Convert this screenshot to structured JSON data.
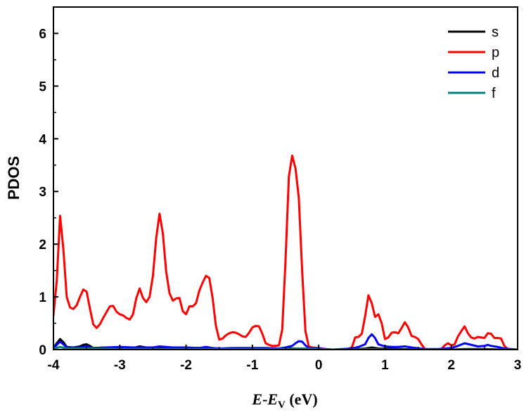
{
  "chart_data": {
    "type": "line",
    "title": "",
    "xlabel": {
      "italic_part": "E",
      "sep": "-",
      "italic_part2": "E",
      "subscript": "V",
      "unit": " (eV)"
    },
    "ylabel": "PDOS",
    "xlim": [
      -4,
      3
    ],
    "ylim": [
      0,
      6.5
    ],
    "xticks": [
      -4,
      -3,
      -2,
      -1,
      0,
      1,
      2,
      3
    ],
    "xtick_labels": [
      "-4",
      "-3",
      "-2",
      "-1",
      "0",
      "1",
      "2",
      "3"
    ],
    "yticks": [
      0,
      1,
      2,
      3,
      4,
      5,
      6
    ],
    "ytick_labels": [
      "0",
      "1",
      "2",
      "3",
      "4",
      "5",
      "6"
    ],
    "grid": false,
    "legend_position": "top-right",
    "series": [
      {
        "name": "s",
        "color": "#000000",
        "points": [
          [
            -4.0,
            0.03
          ],
          [
            -3.95,
            0.12
          ],
          [
            -3.9,
            0.2
          ],
          [
            -3.85,
            0.14
          ],
          [
            -3.8,
            0.05
          ],
          [
            -3.7,
            0.04
          ],
          [
            -3.6,
            0.06
          ],
          [
            -3.55,
            0.09
          ],
          [
            -3.5,
            0.1
          ],
          [
            -3.45,
            0.07
          ],
          [
            -3.4,
            0.03
          ],
          [
            -3.2,
            0.04
          ],
          [
            -3.0,
            0.04
          ],
          [
            -2.8,
            0.03
          ],
          [
            -2.7,
            0.06
          ],
          [
            -2.6,
            0.04
          ],
          [
            -2.5,
            0.03
          ],
          [
            -2.4,
            0.05
          ],
          [
            -2.3,
            0.03
          ],
          [
            -2.0,
            0.03
          ],
          [
            -1.7,
            0.03
          ],
          [
            -1.5,
            0.02
          ],
          [
            -1.0,
            0.02
          ],
          [
            -0.5,
            0.02
          ],
          [
            -0.3,
            0.02
          ],
          [
            0.0,
            0.01
          ],
          [
            0.2,
            0.0
          ],
          [
            0.5,
            0.0
          ],
          [
            0.7,
            0.02
          ],
          [
            0.8,
            0.04
          ],
          [
            0.9,
            0.02
          ],
          [
            1.2,
            0.01
          ],
          [
            1.6,
            0.0
          ],
          [
            2.0,
            0.0
          ],
          [
            2.2,
            0.01
          ],
          [
            2.5,
            0.01
          ],
          [
            2.8,
            0.0
          ],
          [
            3.0,
            0.0
          ]
        ]
      },
      {
        "name": "p",
        "color": "#ff0000",
        "points": [
          [
            -4.0,
            0.65
          ],
          [
            -3.95,
            1.3
          ],
          [
            -3.9,
            2.54
          ],
          [
            -3.85,
            1.9
          ],
          [
            -3.8,
            1.0
          ],
          [
            -3.75,
            0.8
          ],
          [
            -3.7,
            0.77
          ],
          [
            -3.65,
            0.84
          ],
          [
            -3.6,
            1.0
          ],
          [
            -3.55,
            1.14
          ],
          [
            -3.5,
            1.1
          ],
          [
            -3.45,
            0.78
          ],
          [
            -3.4,
            0.48
          ],
          [
            -3.35,
            0.41
          ],
          [
            -3.3,
            0.48
          ],
          [
            -3.25,
            0.6
          ],
          [
            -3.2,
            0.71
          ],
          [
            -3.15,
            0.82
          ],
          [
            -3.1,
            0.83
          ],
          [
            -3.05,
            0.72
          ],
          [
            -3.0,
            0.67
          ],
          [
            -2.95,
            0.65
          ],
          [
            -2.9,
            0.6
          ],
          [
            -2.85,
            0.57
          ],
          [
            -2.8,
            0.67
          ],
          [
            -2.75,
            0.98
          ],
          [
            -2.7,
            1.16
          ],
          [
            -2.65,
            0.98
          ],
          [
            -2.6,
            0.9
          ],
          [
            -2.55,
            1.0
          ],
          [
            -2.5,
            1.4
          ],
          [
            -2.45,
            2.12
          ],
          [
            -2.4,
            2.58
          ],
          [
            -2.35,
            2.2
          ],
          [
            -2.3,
            1.48
          ],
          [
            -2.25,
            1.07
          ],
          [
            -2.2,
            0.93
          ],
          [
            -2.15,
            0.97
          ],
          [
            -2.1,
            0.98
          ],
          [
            -2.05,
            0.73
          ],
          [
            -2.0,
            0.67
          ],
          [
            -1.95,
            0.82
          ],
          [
            -1.9,
            0.82
          ],
          [
            -1.85,
            0.88
          ],
          [
            -1.8,
            1.12
          ],
          [
            -1.75,
            1.27
          ],
          [
            -1.7,
            1.4
          ],
          [
            -1.65,
            1.36
          ],
          [
            -1.6,
            0.98
          ],
          [
            -1.55,
            0.45
          ],
          [
            -1.5,
            0.19
          ],
          [
            -1.45,
            0.21
          ],
          [
            -1.4,
            0.27
          ],
          [
            -1.35,
            0.31
          ],
          [
            -1.3,
            0.33
          ],
          [
            -1.25,
            0.32
          ],
          [
            -1.2,
            0.29
          ],
          [
            -1.15,
            0.25
          ],
          [
            -1.1,
            0.24
          ],
          [
            -1.05,
            0.32
          ],
          [
            -1.0,
            0.42
          ],
          [
            -0.95,
            0.45
          ],
          [
            -0.9,
            0.44
          ],
          [
            -0.85,
            0.3
          ],
          [
            -0.8,
            0.12
          ],
          [
            -0.75,
            0.09
          ],
          [
            -0.7,
            0.07
          ],
          [
            -0.65,
            0.07
          ],
          [
            -0.6,
            0.08
          ],
          [
            -0.55,
            0.38
          ],
          [
            -0.5,
            1.7
          ],
          [
            -0.45,
            3.28
          ],
          [
            -0.4,
            3.68
          ],
          [
            -0.35,
            3.44
          ],
          [
            -0.3,
            2.88
          ],
          [
            -0.25,
            1.5
          ],
          [
            -0.2,
            0.35
          ],
          [
            -0.15,
            0.06
          ],
          [
            -0.1,
            0.04
          ],
          [
            0.0,
            0.03
          ],
          [
            0.1,
            0.01
          ],
          [
            0.2,
            0.0
          ],
          [
            0.4,
            0.0
          ],
          [
            0.5,
            0.04
          ],
          [
            0.55,
            0.23
          ],
          [
            0.6,
            0.24
          ],
          [
            0.65,
            0.3
          ],
          [
            0.7,
            0.63
          ],
          [
            0.75,
            1.03
          ],
          [
            0.8,
            0.88
          ],
          [
            0.85,
            0.62
          ],
          [
            0.9,
            0.67
          ],
          [
            0.95,
            0.5
          ],
          [
            1.0,
            0.2
          ],
          [
            1.05,
            0.23
          ],
          [
            1.1,
            0.32
          ],
          [
            1.15,
            0.33
          ],
          [
            1.2,
            0.31
          ],
          [
            1.25,
            0.41
          ],
          [
            1.3,
            0.52
          ],
          [
            1.35,
            0.42
          ],
          [
            1.4,
            0.26
          ],
          [
            1.45,
            0.24
          ],
          [
            1.5,
            0.2
          ],
          [
            1.55,
            0.1
          ],
          [
            1.6,
            0.01
          ],
          [
            1.7,
            0.0
          ],
          [
            1.85,
            0.01
          ],
          [
            1.9,
            0.08
          ],
          [
            1.95,
            0.12
          ],
          [
            2.0,
            0.08
          ],
          [
            2.05,
            0.1
          ],
          [
            2.1,
            0.25
          ],
          [
            2.15,
            0.35
          ],
          [
            2.2,
            0.44
          ],
          [
            2.25,
            0.31
          ],
          [
            2.3,
            0.23
          ],
          [
            2.35,
            0.21
          ],
          [
            2.4,
            0.24
          ],
          [
            2.45,
            0.23
          ],
          [
            2.5,
            0.22
          ],
          [
            2.55,
            0.31
          ],
          [
            2.6,
            0.3
          ],
          [
            2.65,
            0.22
          ],
          [
            2.7,
            0.22
          ],
          [
            2.75,
            0.21
          ],
          [
            2.8,
            0.07
          ],
          [
            2.85,
            0.01
          ],
          [
            3.0,
            0.0
          ]
        ]
      },
      {
        "name": "d",
        "color": "#0000ff",
        "points": [
          [
            -4.0,
            0.03
          ],
          [
            -3.95,
            0.09
          ],
          [
            -3.9,
            0.15
          ],
          [
            -3.85,
            0.1
          ],
          [
            -3.8,
            0.04
          ],
          [
            -3.6,
            0.04
          ],
          [
            -3.5,
            0.06
          ],
          [
            -3.4,
            0.03
          ],
          [
            -3.2,
            0.04
          ],
          [
            -3.0,
            0.05
          ],
          [
            -2.8,
            0.04
          ],
          [
            -2.7,
            0.04
          ],
          [
            -2.6,
            0.04
          ],
          [
            -2.5,
            0.04
          ],
          [
            -2.4,
            0.06
          ],
          [
            -2.3,
            0.05
          ],
          [
            -2.2,
            0.04
          ],
          [
            -2.0,
            0.04
          ],
          [
            -1.8,
            0.03
          ],
          [
            -1.7,
            0.05
          ],
          [
            -1.6,
            0.03
          ],
          [
            -1.5,
            0.02
          ],
          [
            -1.3,
            0.03
          ],
          [
            -1.0,
            0.03
          ],
          [
            -0.8,
            0.03
          ],
          [
            -0.6,
            0.02
          ],
          [
            -0.5,
            0.04
          ],
          [
            -0.4,
            0.07
          ],
          [
            -0.35,
            0.12
          ],
          [
            -0.3,
            0.16
          ],
          [
            -0.25,
            0.15
          ],
          [
            -0.2,
            0.08
          ],
          [
            -0.15,
            0.03
          ],
          [
            0.0,
            0.02
          ],
          [
            0.2,
            0.0
          ],
          [
            0.5,
            0.02
          ],
          [
            0.6,
            0.05
          ],
          [
            0.7,
            0.1
          ],
          [
            0.75,
            0.22
          ],
          [
            0.8,
            0.29
          ],
          [
            0.85,
            0.22
          ],
          [
            0.9,
            0.1
          ],
          [
            1.0,
            0.06
          ],
          [
            1.1,
            0.05
          ],
          [
            1.2,
            0.05
          ],
          [
            1.3,
            0.06
          ],
          [
            1.4,
            0.04
          ],
          [
            1.6,
            0.01
          ],
          [
            1.8,
            0.01
          ],
          [
            2.0,
            0.03
          ],
          [
            2.1,
            0.07
          ],
          [
            2.2,
            0.12
          ],
          [
            2.3,
            0.09
          ],
          [
            2.4,
            0.06
          ],
          [
            2.5,
            0.07
          ],
          [
            2.55,
            0.09
          ],
          [
            2.6,
            0.07
          ],
          [
            2.7,
            0.05
          ],
          [
            2.8,
            0.02
          ],
          [
            3.0,
            0.0
          ]
        ]
      },
      {
        "name": "f",
        "color": "#008080",
        "points": [
          [
            -4.0,
            0.02
          ],
          [
            -3.9,
            0.05
          ],
          [
            -3.8,
            0.02
          ],
          [
            -3.5,
            0.02
          ],
          [
            -3.0,
            0.01
          ],
          [
            -2.5,
            0.01
          ],
          [
            -2.0,
            0.01
          ],
          [
            -1.5,
            0.01
          ],
          [
            -1.0,
            0.01
          ],
          [
            -0.5,
            0.01
          ],
          [
            -0.3,
            0.02
          ],
          [
            0.0,
            0.01
          ],
          [
            0.2,
            0.0
          ],
          [
            0.5,
            0.0
          ],
          [
            0.8,
            0.01
          ],
          [
            1.0,
            0.0
          ],
          [
            1.5,
            0.0
          ],
          [
            2.0,
            0.0
          ],
          [
            2.5,
            0.0
          ],
          [
            3.0,
            0.0
          ]
        ]
      }
    ]
  }
}
